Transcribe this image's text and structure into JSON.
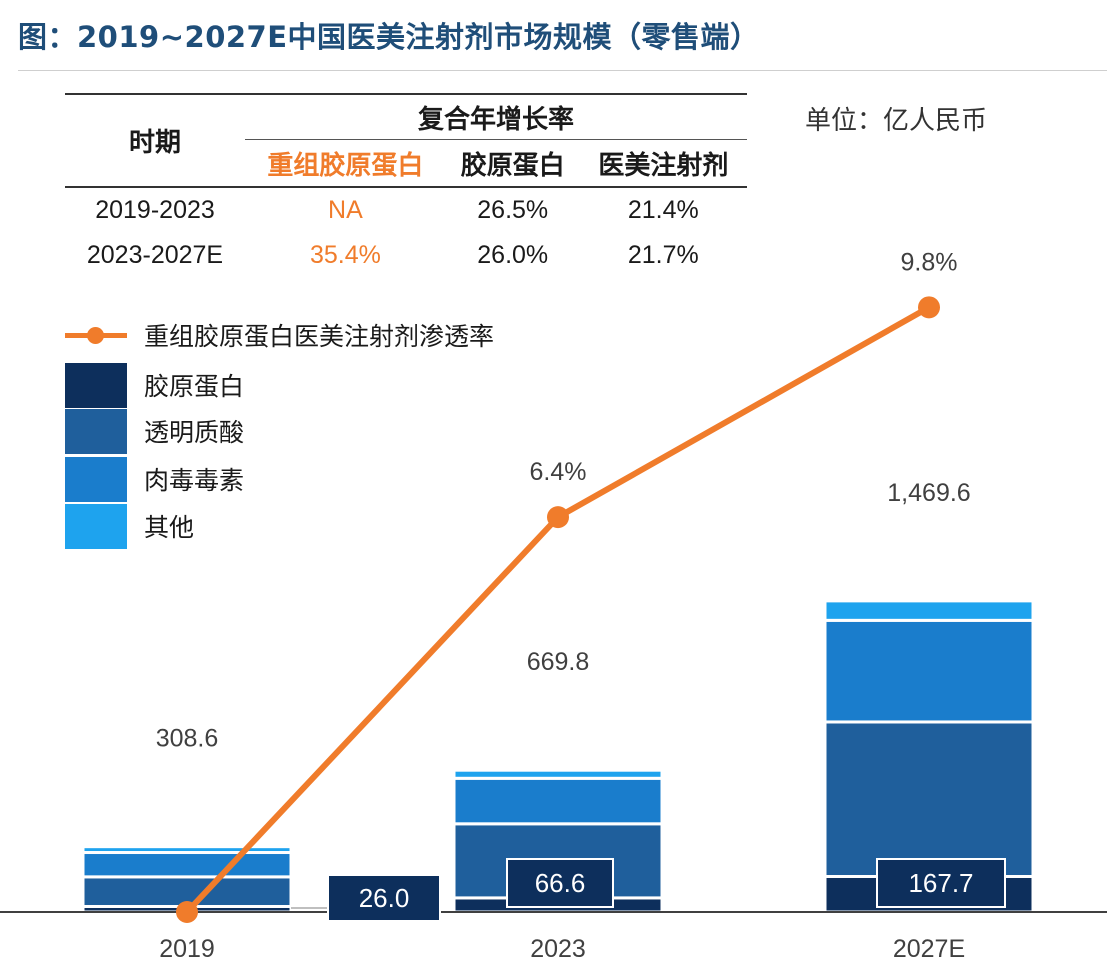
{
  "title": "图：2019~2027E中国医美注射剂市场规模（零售端）",
  "unit": "单位：亿人民币",
  "cagr_table": {
    "period_header": "时期",
    "group_header": "复合年增长率",
    "columns": [
      "重组胶原蛋白",
      "胶原蛋白",
      "医美注射剂"
    ],
    "rows": [
      {
        "period": "2019-2023",
        "values": [
          "NA",
          "26.5%",
          "21.4%"
        ]
      },
      {
        "period": "2023-2027E",
        "values": [
          "35.4%",
          "26.0%",
          "21.7%"
        ]
      }
    ]
  },
  "colors": {
    "collagen": "#0d2f5c",
    "hyaluronic": "#1f5f9c",
    "botulinum": "#1a7dcc",
    "other": "#1ea3ee",
    "line": "#f07c2b",
    "highlight": "#f07c2b",
    "title": "#1f4e79"
  },
  "chart_data": {
    "type": "bar",
    "stacked": true,
    "categories": [
      "2019",
      "2023",
      "2027E"
    ],
    "totals": [
      308.6,
      669.8,
      1469.6
    ],
    "total_labels": [
      "308.6",
      "669.8",
      "1,469.6"
    ],
    "series": [
      {
        "name": "胶原蛋白",
        "values": [
          26.0,
          66.6,
          167.7
        ],
        "labels": [
          "26.0",
          "66.6",
          "167.7"
        ]
      },
      {
        "name": "透明质酸",
        "values": [
          140,
          350,
          730
        ]
      },
      {
        "name": "肉毒毒素",
        "values": [
          115,
          215,
          480
        ]
      },
      {
        "name": "其他",
        "values": [
          27.6,
          38.2,
          91.9
        ]
      }
    ],
    "line_series": {
      "name": "重组胶原蛋白医美注射剂渗透率",
      "values": [
        0.0,
        6.4,
        9.8
      ],
      "labels": [
        "",
        "6.4%",
        "9.8%"
      ]
    },
    "legend_position": "top-left"
  }
}
